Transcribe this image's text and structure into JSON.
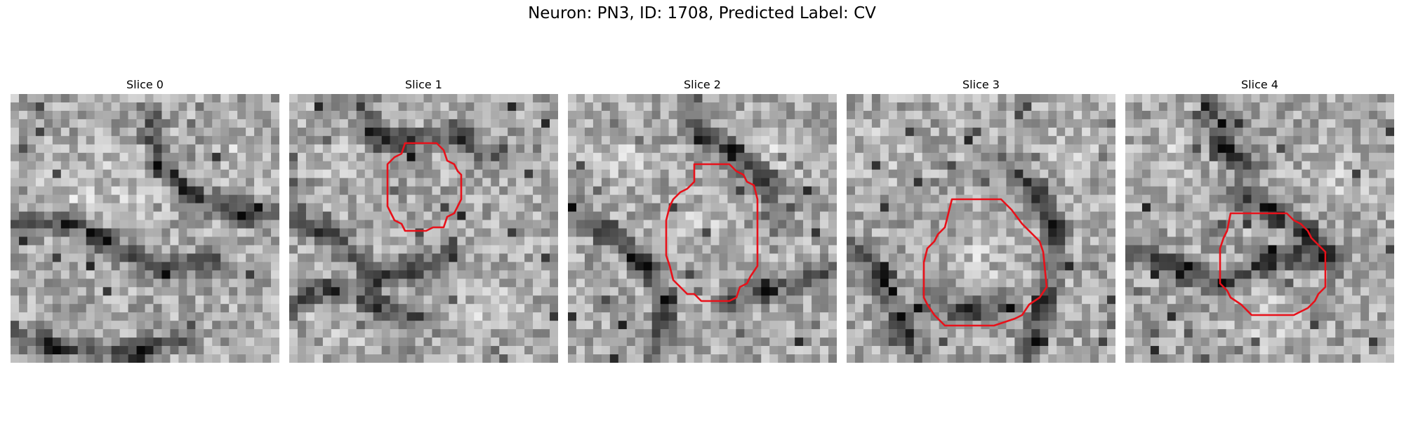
{
  "figure": {
    "title": "Neuron: PN3, ID: 1708, Predicted Label: CV"
  },
  "panels": [
    {
      "title": "Slice 0",
      "seed": 11,
      "has_contour": false
    },
    {
      "title": "Slice 1",
      "seed": 23,
      "has_contour": true
    },
    {
      "title": "Slice 2",
      "seed": 37,
      "has_contour": true
    },
    {
      "title": "Slice 3",
      "seed": 41,
      "has_contour": true
    },
    {
      "title": "Slice 4",
      "seed": 53,
      "has_contour": true
    }
  ],
  "colors": {
    "contour": "#e8111a"
  }
}
